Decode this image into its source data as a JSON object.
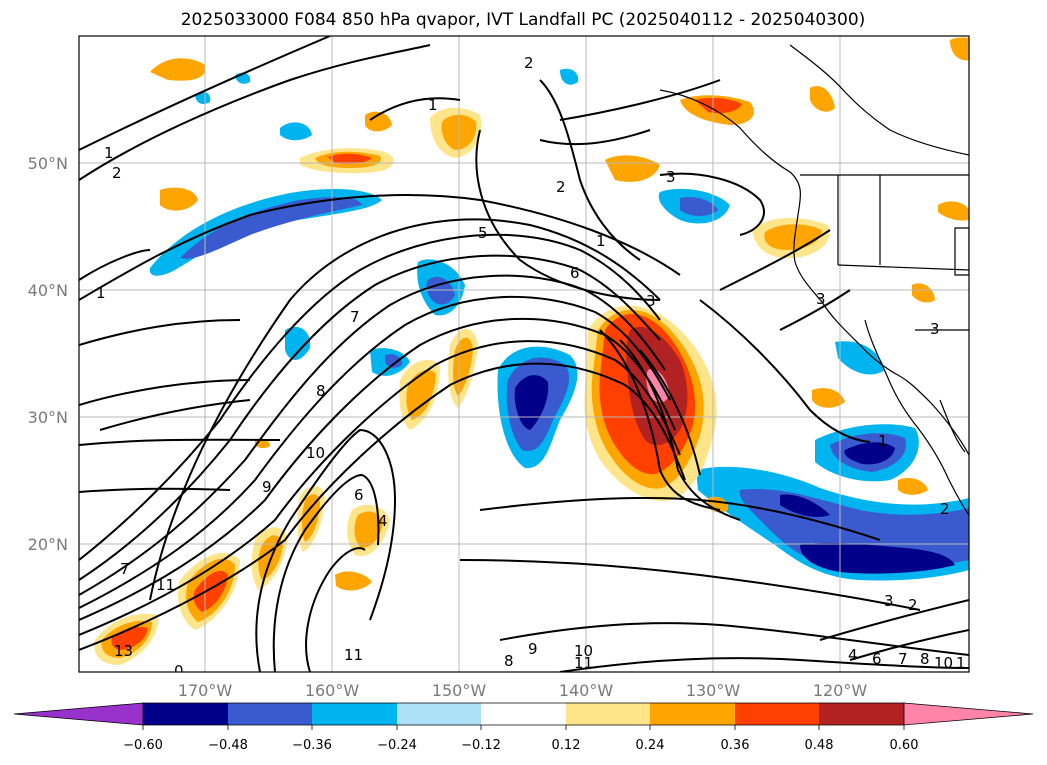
{
  "title": "2025033000 F084 850 hPa qvapor, IVT Landfall PC (2025040112 - 2025040300)",
  "lat_labels": [
    "50°N",
    "40°N",
    "30°N",
    "20°N"
  ],
  "lon_labels": [
    "170°W",
    "160°W",
    "150°W",
    "140°W",
    "130°W",
    "120°W"
  ],
  "colorbar": {
    "ticks": [
      "−0.60",
      "−0.48",
      "−0.36",
      "−0.24",
      "−0.12",
      "0.12",
      "0.24",
      "0.36",
      "0.48",
      "0.60"
    ],
    "colors": [
      "#9932CC",
      "#00008B",
      "#3A5BD0",
      "#00B4F0",
      "#AEE0F7",
      "#FFFFFF",
      "#FFE58A",
      "#FFA500",
      "#FF4000",
      "#B22222",
      "#FF85A8"
    ]
  },
  "contour_labels": [
    "1",
    "2",
    "1",
    "2",
    "3",
    "2",
    "1",
    "5",
    "6",
    "3",
    "1",
    "7",
    "8",
    "10",
    "9",
    "6",
    "4",
    "7",
    "11",
    "13",
    "0",
    "11",
    "8",
    "9",
    "10",
    "11",
    "3",
    "2",
    "4",
    "6",
    "7",
    "8",
    "10",
    "1",
    "3",
    "3",
    "2",
    "1"
  ]
}
